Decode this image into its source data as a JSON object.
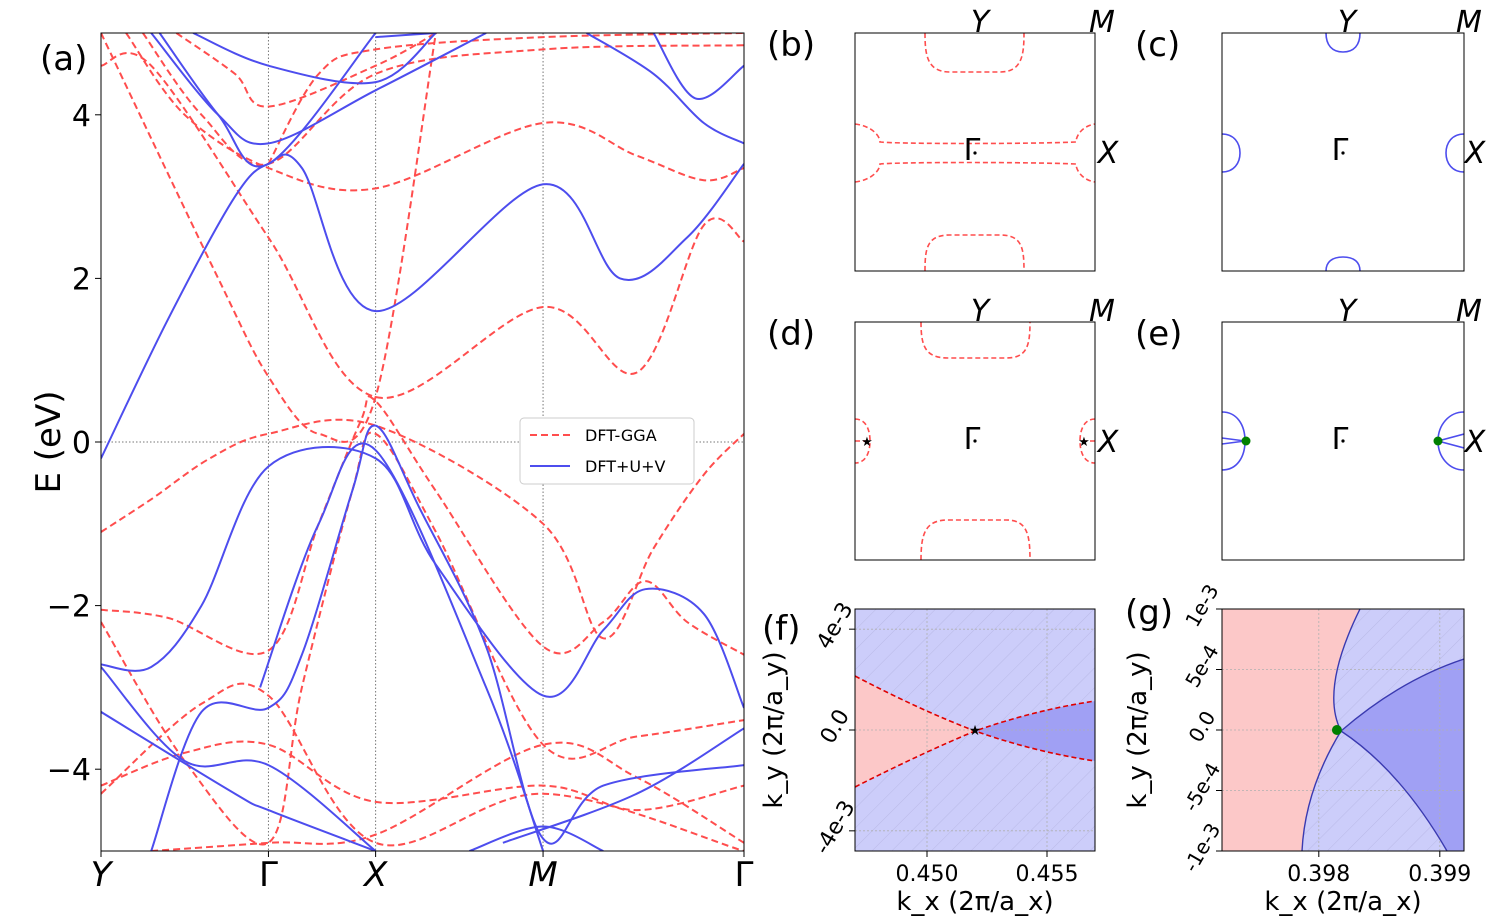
{
  "colors": {
    "gga": "#ff4d4d",
    "upv": "#4d4dee",
    "green": "#008000",
    "pink": "#fcc8c8",
    "lavender": "#cccdfa",
    "blue_region": "#a0a0f4"
  },
  "chart_data": [
    {
      "panel": "(a)",
      "type": "line",
      "ylabel": "E (eV)",
      "ylim": [
        -5,
        5
      ],
      "yticks": [
        {
          "v": 4,
          "label": "4"
        },
        {
          "v": 2,
          "label": "2"
        },
        {
          "v": 0,
          "label": "0"
        },
        {
          "v": -2,
          "label": "−2"
        },
        {
          "v": -4,
          "label": "−4"
        }
      ],
      "kpoints": [
        {
          "label": "Y",
          "x": 0
        },
        {
          "label": "Γ",
          "x": 1
        },
        {
          "label": "X",
          "x": 1.64
        },
        {
          "label": "M",
          "x": 2.64
        },
        {
          "label": "Γ",
          "x": 3.84
        }
      ],
      "xlim": [
        0,
        3.84
      ],
      "legend": [
        "DFT-GGA",
        "DFT+U+V"
      ],
      "legend_location": "right",
      "series": [
        {
          "name": "DFT-GGA",
          "style": "dashed",
          "color": "#ff4d4d",
          "bands": [
            [
              [
                0,
                -1.1
              ],
              [
                0.3,
                -0.7
              ],
              [
                0.65,
                -0.2
              ],
              [
                1,
                0.1
              ],
              [
                1.64,
                0.2
              ],
              [
                2.64,
                -1.0
              ],
              [
                3.0,
                -2.4
              ],
              [
                3.3,
                -1.3
              ],
              [
                3.6,
                -0.4
              ],
              [
                3.84,
                0.1
              ]
            ],
            [
              [
                0,
                -2.05
              ],
              [
                0.4,
                -2.15
              ],
              [
                1,
                -2.55
              ],
              [
                1.3,
                -1.0
              ],
              [
                1.55,
                0.25
              ],
              [
                1.64,
                0.5
              ],
              [
                2.0,
                -0.6
              ],
              [
                2.64,
                -2.5
              ],
              [
                3.0,
                -2.2
              ],
              [
                3.25,
                -1.7
              ],
              [
                3.5,
                -2.2
              ],
              [
                3.84,
                -2.6
              ]
            ],
            [
              [
                0,
                -2.2
              ],
              [
                0.5,
                -3.9
              ],
              [
                1,
                -4.9
              ],
              [
                1.2,
                -3.0
              ],
              [
                1.5,
                -0.6
              ],
              [
                1.64,
                0.1
              ],
              [
                2.0,
                -1.1
              ],
              [
                2.64,
                -3.7
              ],
              [
                3.2,
                -3.6
              ],
              [
                3.84,
                -3.4
              ]
            ],
            [
              [
                0,
                -4.2
              ],
              [
                0.5,
                -3.8
              ],
              [
                1,
                -3.7
              ],
              [
                1.64,
                -4.4
              ],
              [
                2.64,
                -4.2
              ],
              [
                3.2,
                -4.5
              ],
              [
                3.84,
                -4.2
              ]
            ],
            [
              [
                0,
                -4.3
              ],
              [
                0.6,
                -3.2
              ],
              [
                1,
                -3.1
              ],
              [
                1.64,
                -4.9
              ],
              [
                2.64,
                -4.3
              ],
              [
                3.84,
                -5.0
              ]
            ],
            [
              [
                0.3,
                -5.0
              ],
              [
                1,
                -4.9
              ],
              [
                1.64,
                -4.8
              ],
              [
                2.64,
                -3.7
              ],
              [
                3.2,
                -4.1
              ],
              [
                3.84,
                -4.9
              ]
            ],
            [
              [
                0,
                4.6
              ],
              [
                0.3,
                4.6
              ],
              [
                1,
                2.5
              ],
              [
                1.64,
                0.55
              ],
              [
                2.64,
                1.65
              ],
              [
                3.2,
                0.85
              ],
              [
                3.6,
                2.65
              ],
              [
                3.84,
                2.45
              ]
            ],
            [
              [
                0.15,
                5.0
              ],
              [
                0.5,
                4.0
              ],
              [
                1,
                3.35
              ],
              [
                1.64,
                3.1
              ],
              [
                2.64,
                3.9
              ],
              [
                3.2,
                3.5
              ],
              [
                3.6,
                3.2
              ],
              [
                3.84,
                3.35
              ]
            ],
            [
              [
                0.25,
                5.0
              ],
              [
                0.6,
                4.0
              ],
              [
                1,
                3.4
              ],
              [
                1.64,
                4.5
              ],
              [
                2.64,
                4.8
              ],
              [
                3.84,
                4.85
              ]
            ],
            [
              [
                0.45,
                5.0
              ],
              [
                0.8,
                4.5
              ],
              [
                1,
                4.1
              ],
              [
                1.64,
                4.6
              ],
              [
                2.0,
                5.0
              ]
            ],
            [
              [
                0,
                5.0
              ],
              [
                0.7,
                2.0
              ],
              [
                1,
                0.8
              ],
              [
                1.3,
                0.1
              ],
              [
                1.64,
                0.55
              ],
              [
                2.0,
                5.0
              ]
            ],
            [
              [
                1.0,
                3.4
              ],
              [
                1.3,
                4.5
              ],
              [
                1.64,
                4.8
              ],
              [
                2.64,
                4.95
              ],
              [
                3.84,
                5.0
              ]
            ]
          ]
        },
        {
          "name": "DFT+U+V",
          "style": "solid",
          "color": "#4d4dee",
          "bands": [
            [
              [
                0,
                -0.2
              ],
              [
                0.4,
                1.5
              ],
              [
                0.8,
                3.0
              ],
              [
                1,
                3.4
              ],
              [
                1.2,
                3.35
              ],
              [
                1.64,
                1.6
              ],
              [
                2.64,
                3.15
              ],
              [
                3.1,
                2.0
              ],
              [
                3.5,
                2.5
              ],
              [
                3.84,
                3.4
              ]
            ],
            [
              [
                0,
                -2.72
              ],
              [
                0.3,
                -2.75
              ],
              [
                0.6,
                -2.0
              ],
              [
                1,
                -0.3
              ],
              [
                1.64,
                -0.2
              ],
              [
                2.0,
                -1.5
              ],
              [
                2.64,
                -3.1
              ],
              [
                3.0,
                -2.3
              ],
              [
                3.25,
                -1.8
              ],
              [
                3.6,
                -2.1
              ],
              [
                3.84,
                -3.25
              ]
            ],
            [
              [
                0,
                -2.75
              ],
              [
                0.5,
                -3.9
              ],
              [
                1,
                -3.95
              ],
              [
                1.64,
                -5.0
              ]
            ],
            [
              [
                0,
                -3.3
              ],
              [
                0.8,
                -4.3
              ],
              [
                1,
                -4.5
              ],
              [
                1.64,
                -5.0
              ]
            ],
            [
              [
                0.3,
                -5.0
              ],
              [
                0.6,
                -3.3
              ],
              [
                1,
                -3.25
              ],
              [
                1.2,
                -2.6
              ],
              [
                1.5,
                -0.6
              ],
              [
                1.64,
                0.2
              ],
              [
                1.9,
                -0.8
              ],
              [
                2.3,
                -2.5
              ],
              [
                2.64,
                -4.85
              ],
              [
                3.0,
                -4.2
              ],
              [
                3.84,
                -3.95
              ]
            ],
            [
              [
                0.95,
                -3.0
              ],
              [
                1.3,
                -1.0
              ],
              [
                1.64,
                -0.1
              ],
              [
                2.3,
                -3.0
              ],
              [
                2.64,
                -5.0
              ]
            ],
            [
              [
                2.2,
                -5.0
              ],
              [
                2.64,
                -4.7
              ],
              [
                3.0,
                -5.0
              ]
            ],
            [
              [
                2.4,
                -4.9
              ],
              [
                3.2,
                -4.3
              ],
              [
                3.84,
                -3.5
              ]
            ],
            [
              [
                0.3,
                5.0
              ],
              [
                0.7,
                4.0
              ],
              [
                1,
                3.65
              ],
              [
                1.64,
                4.3
              ],
              [
                2.3,
                5.0
              ]
            ],
            [
              [
                0.55,
                5.0
              ],
              [
                1.0,
                4.6
              ],
              [
                1.64,
                4.4
              ],
              [
                2.0,
                5.0
              ]
            ],
            [
              [
                0.35,
                5.0
              ],
              [
                0.7,
                4.0
              ],
              [
                1.0,
                3.4
              ],
              [
                1.64,
                5.0
              ]
            ],
            [
              [
                2.9,
                5.0
              ],
              [
                3.3,
                4.5
              ],
              [
                3.6,
                3.9
              ],
              [
                3.84,
                3.65
              ]
            ],
            [
              [
                3.3,
                5.0
              ],
              [
                3.55,
                4.2
              ],
              [
                3.84,
                4.6
              ]
            ],
            [
              [
                1.64,
                4.95
              ],
              [
                2.0,
                5.0
              ]
            ]
          ]
        }
      ]
    },
    {
      "panel": "(b)",
      "type": "contour",
      "labels": {
        "Y": "Y",
        "M": "M",
        "G": "Γ",
        "X": "X"
      }
    },
    {
      "panel": "(c)",
      "type": "contour",
      "labels": {
        "Y": "Y",
        "M": "M",
        "G": "Γ",
        "X": "X"
      }
    },
    {
      "panel": "(d)",
      "type": "contour",
      "labels": {
        "Y": "Y",
        "M": "M",
        "G": "Γ",
        "X": "X"
      }
    },
    {
      "panel": "(e)",
      "type": "contour",
      "labels": {
        "Y": "Y",
        "M": "M",
        "G": "Γ",
        "X": "X"
      }
    },
    {
      "panel": "(f)",
      "type": "region",
      "xlabel": "k_x (2π/a_x)",
      "ylabel": "k_y (2π/a_y)",
      "xlim": [
        0.447,
        0.457
      ],
      "ylim": [
        -0.0048,
        0.0048
      ],
      "xticks": [
        {
          "v": 0.45,
          "label": "0.450"
        },
        {
          "v": 0.455,
          "label": "0.455"
        }
      ],
      "yticks": [
        {
          "v": 0.004,
          "label": "4e-3"
        },
        {
          "v": 0.0,
          "label": "0.0"
        },
        {
          "v": -0.004,
          "label": "-4e-3"
        }
      ],
      "crossing": {
        "kx": 0.452,
        "ky": 0.0,
        "marker": "star"
      }
    },
    {
      "panel": "(g)",
      "type": "region",
      "xlabel": "k_x (2π/a_x)",
      "ylabel": "k_y (2π/a_y)",
      "xlim": [
        0.3972,
        0.3992
      ],
      "ylim": [
        -0.001,
        0.001
      ],
      "xticks": [
        {
          "v": 0.398,
          "label": "0.398"
        },
        {
          "v": 0.399,
          "label": "0.399"
        }
      ],
      "yticks": [
        {
          "v": 0.001,
          "label": "1e-3"
        },
        {
          "v": 0.0005,
          "label": "5e-4"
        },
        {
          "v": 0.0,
          "label": "0.0"
        },
        {
          "v": -0.0005,
          "label": "-5e-4"
        },
        {
          "v": -0.001,
          "label": "-1e-3"
        }
      ],
      "crossing": {
        "kx": 0.39815,
        "ky": 0.0,
        "marker": "dot"
      }
    }
  ]
}
